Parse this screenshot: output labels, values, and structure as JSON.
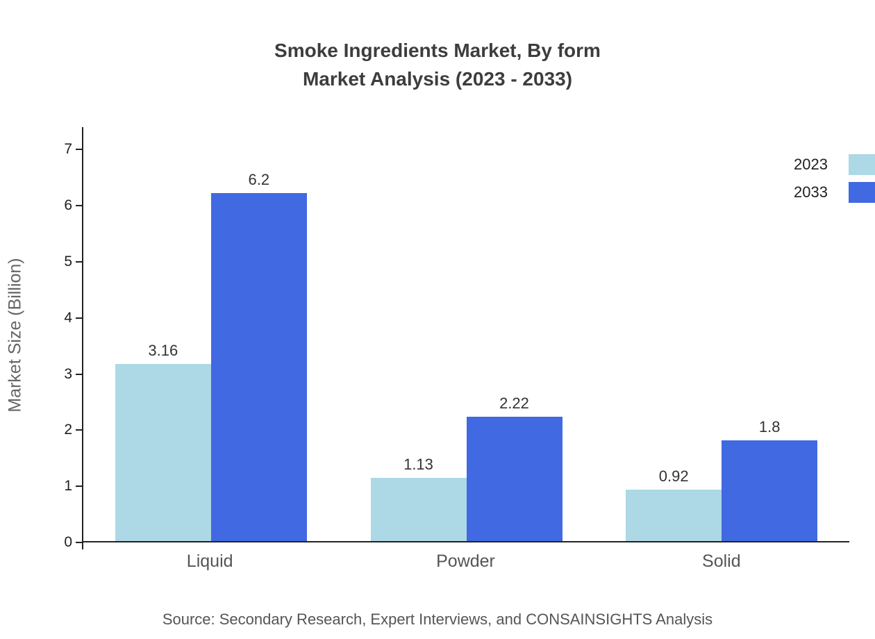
{
  "title": {
    "line1": "Smoke Ingredients Market, By form",
    "line2": "Market Analysis (2023 - 2033)"
  },
  "source": "Source: Secondary Research, Expert Interviews, and CONSAINSIGHTS Analysis",
  "chart_data": {
    "type": "bar",
    "categories": [
      "Liquid",
      "Powder",
      "Solid"
    ],
    "series": [
      {
        "name": "2023",
        "color": "#ADD8E6",
        "values": [
          3.16,
          1.13,
          0.92
        ]
      },
      {
        "name": "2033",
        "color": "#4169E1",
        "values": [
          6.2,
          2.22,
          1.8
        ]
      }
    ],
    "title": "Smoke Ingredients Market, By form Market Analysis (2023 - 2033)",
    "xlabel": "",
    "ylabel": "Market Size (Billion)",
    "ylim": [
      0,
      7.4
    ],
    "yticks": [
      0,
      1,
      2,
      3,
      4,
      5,
      6,
      7
    ],
    "grid": false,
    "legend_position": "top-right",
    "value_labels": true
  }
}
